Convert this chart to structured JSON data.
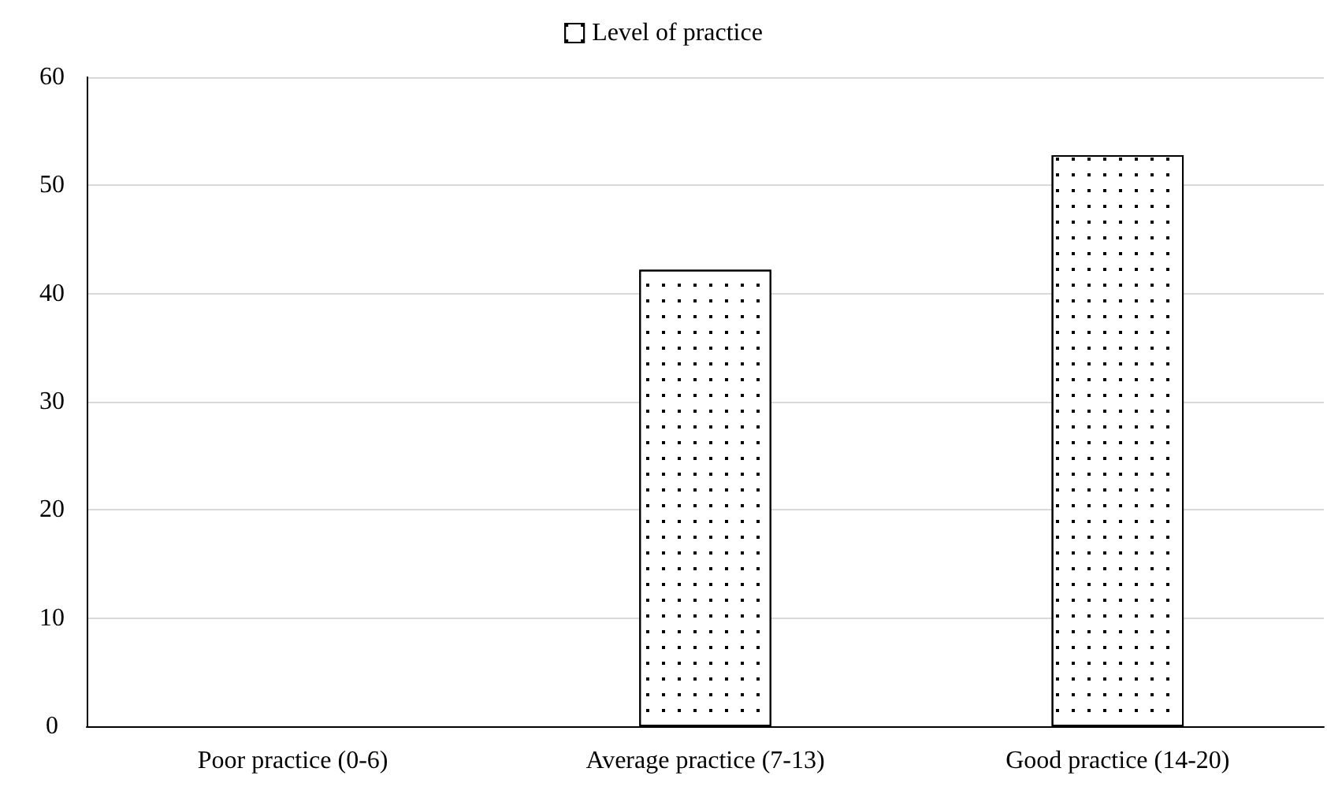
{
  "chart_data": {
    "type": "bar",
    "categories": [
      "Poor practice (0-6)",
      "Average practice (7-13)",
      "Good practice (14-20)"
    ],
    "series": [
      {
        "name": "Level of practice",
        "color": "#ffffff",
        "values": [
          0,
          42.2,
          52.8
        ]
      }
    ],
    "ylim": [
      0,
      60
    ],
    "yticks": [
      0,
      10,
      20,
      30,
      40,
      50,
      60
    ],
    "grid": "y",
    "legend": "top"
  }
}
